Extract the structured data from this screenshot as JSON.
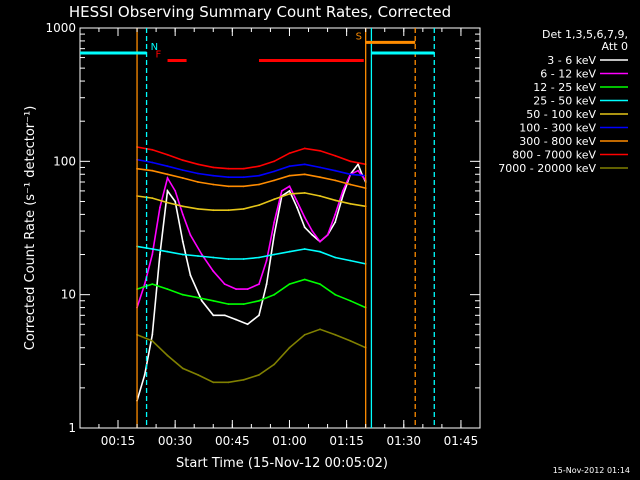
{
  "chart_data": {
    "type": "line",
    "title": "HESSI Observing Summary Count Rates, Corrected",
    "xlabel": "Start Time (15-Nov-12 00:05:02)",
    "ylabel": "Corrected Count Rate (s⁻¹ detector⁻¹)",
    "y_scale": "log",
    "ylim": [
      1,
      1000
    ],
    "xlim_minutes": [
      5.03,
      110
    ],
    "x_tick_labels": [
      "00:15",
      "00:30",
      "00:45",
      "01:00",
      "01:15",
      "01:30",
      "01:45"
    ],
    "y_tick_labels": [
      "1",
      "10",
      "100",
      "1000"
    ],
    "legend_header": [
      "Det 1,3,5,6,7,9,",
      "Att 0"
    ],
    "timestamp": "15-Nov-2012 01:14",
    "series": [
      {
        "name": "3 - 6 keV",
        "color": "#ffffff",
        "x": [
          20,
          22,
          24,
          26,
          28,
          30,
          32,
          34,
          37,
          40,
          43,
          46,
          49,
          52,
          54,
          56,
          58,
          60,
          62,
          64,
          66,
          68,
          70,
          72,
          74,
          76,
          78,
          79,
          80
        ],
        "y": [
          1.6,
          2.5,
          5,
          20,
          60,
          50,
          25,
          14,
          9,
          7,
          7,
          6.5,
          6,
          7,
          12,
          28,
          55,
          60,
          45,
          32,
          28,
          25,
          28,
          35,
          55,
          80,
          95,
          80,
          70
        ]
      },
      {
        "name": "6 - 12 keV",
        "color": "#ff00ff",
        "x": [
          20,
          22,
          24,
          26,
          28,
          30,
          32,
          34,
          37,
          40,
          43,
          46,
          49,
          52,
          54,
          56,
          58,
          60,
          62,
          64,
          66,
          68,
          70,
          72,
          74,
          76,
          78,
          80
        ],
        "y": [
          8,
          12,
          20,
          45,
          75,
          60,
          40,
          28,
          20,
          15,
          12,
          11,
          11,
          12,
          18,
          35,
          60,
          65,
          50,
          38,
          30,
          25,
          28,
          40,
          60,
          80,
          85,
          72
        ]
      },
      {
        "name": "12 - 25 keV",
        "color": "#00ff00",
        "x": [
          20,
          24,
          28,
          32,
          36,
          40,
          44,
          48,
          52,
          56,
          60,
          64,
          68,
          72,
          76,
          80
        ],
        "y": [
          11,
          12,
          11,
          10,
          9.5,
          9,
          8.5,
          8.5,
          9,
          10,
          12,
          13,
          12,
          10,
          9,
          8
        ]
      },
      {
        "name": "25 - 50 keV",
        "color": "#00ffff",
        "x": [
          20,
          24,
          28,
          32,
          36,
          40,
          44,
          48,
          52,
          56,
          60,
          64,
          68,
          72,
          76,
          80
        ],
        "y": [
          23,
          22,
          21,
          20,
          19.5,
          19,
          18.5,
          18.5,
          19,
          20,
          21,
          22,
          21,
          19,
          18,
          17
        ]
      },
      {
        "name": "50 - 100 keV",
        "color": "#e6c619",
        "x": [
          20,
          24,
          28,
          32,
          36,
          40,
          44,
          48,
          52,
          56,
          60,
          64,
          68,
          72,
          76,
          80
        ],
        "y": [
          55,
          53,
          49,
          46,
          44,
          43,
          43,
          44,
          47,
          52,
          57,
          58,
          55,
          51,
          48,
          46
        ]
      },
      {
        "name": "100 - 300 keV",
        "color": "#0000ff",
        "x": [
          20,
          24,
          28,
          32,
          36,
          40,
          44,
          48,
          52,
          56,
          60,
          64,
          68,
          72,
          76,
          80
        ],
        "y": [
          103,
          98,
          92,
          86,
          81,
          78,
          76,
          76,
          78,
          84,
          92,
          95,
          90,
          85,
          80,
          78
        ]
      },
      {
        "name": "300 - 800 keV",
        "color": "#ff8c00",
        "x": [
          20,
          24,
          28,
          32,
          36,
          40,
          44,
          48,
          52,
          56,
          60,
          64,
          68,
          72,
          76,
          80
        ],
        "y": [
          88,
          85,
          80,
          75,
          70,
          67,
          65,
          65,
          67,
          72,
          78,
          80,
          76,
          72,
          67,
          63
        ]
      },
      {
        "name": "800 - 7000 keV",
        "color": "#ff0000",
        "x": [
          20,
          24,
          28,
          32,
          36,
          40,
          44,
          48,
          52,
          56,
          60,
          64,
          68,
          72,
          76,
          80
        ],
        "y": [
          128,
          122,
          112,
          102,
          95,
          90,
          88,
          88,
          92,
          100,
          115,
          125,
          120,
          110,
          100,
          95
        ]
      },
      {
        "name": "7000 - 20000 keV",
        "color": "#808000",
        "x": [
          20,
          24,
          28,
          32,
          36,
          40,
          44,
          48,
          52,
          56,
          60,
          64,
          68,
          72,
          76,
          80
        ],
        "y": [
          5,
          4.5,
          3.5,
          2.8,
          2.5,
          2.2,
          2.2,
          2.3,
          2.5,
          3,
          4,
          5,
          5.5,
          5,
          4.5,
          4
        ]
      }
    ],
    "annotations": [
      {
        "text": "N",
        "color": "#00ffff"
      },
      {
        "text": "F",
        "color": "#ff0000"
      },
      {
        "text": "S",
        "color": "#ff8c00"
      }
    ],
    "segments": [
      {
        "label": "N",
        "color": "#00ffff",
        "y": 650,
        "ranges": [
          [
            5.03,
            22.5
          ],
          [
            81.5,
            98
          ]
        ]
      },
      {
        "label": "F",
        "color": "#ff0000",
        "y": 570,
        "ranges": [
          [
            28,
            33
          ],
          [
            52,
            79.5
          ]
        ]
      },
      {
        "label": "S",
        "color": "#ff8c00",
        "y": 780,
        "ranges": [
          [
            80,
            93
          ]
        ]
      }
    ],
    "vlines": [
      {
        "x": 22.5,
        "color": "#00ffff",
        "style": "dashed"
      },
      {
        "x": 98,
        "color": "#00ffff",
        "style": "dashed"
      },
      {
        "x": 93,
        "color": "#ff8c00",
        "style": "dashed"
      },
      {
        "x": 20,
        "color": "#ff8c00",
        "style": "solid"
      },
      {
        "x": 80,
        "color": "#ff8c00",
        "style": "solid"
      },
      {
        "x": 81.5,
        "color": "#00ffff",
        "style": "solid"
      }
    ]
  }
}
